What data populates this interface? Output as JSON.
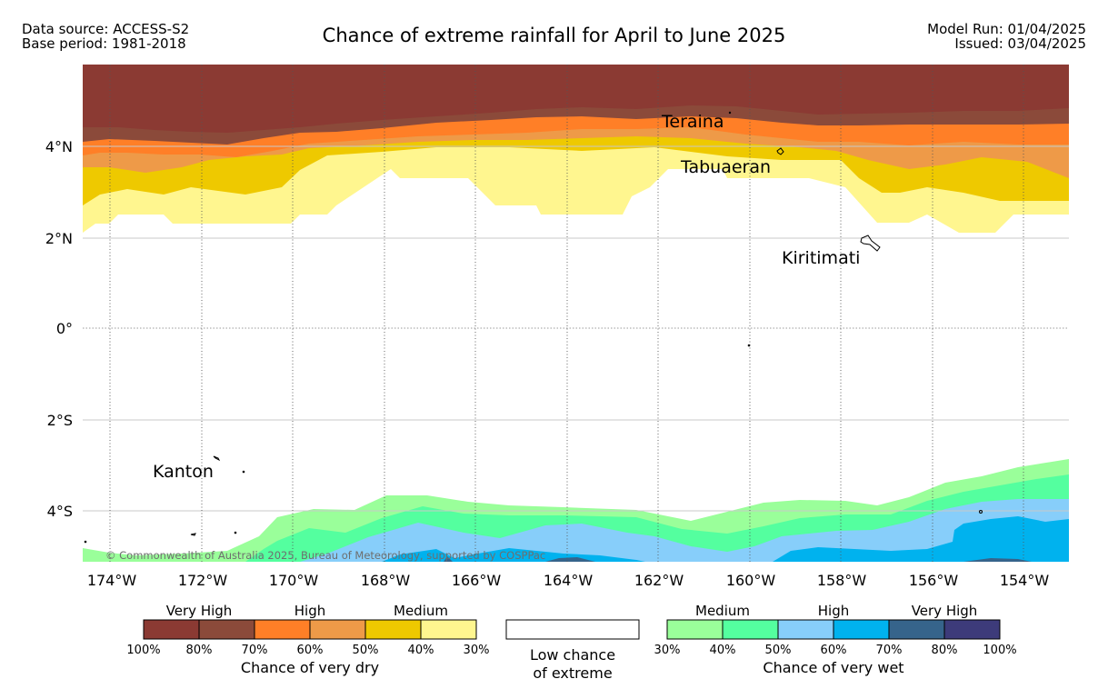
{
  "header": {
    "data_source": "Data source: ACCESS-S2",
    "base_period": "Base period: 1981-2018",
    "model_run": "Model Run: 01/04/2025",
    "issued": "Issued: 03/04/2025",
    "title": "Chance of extreme rainfall for April to June 2025"
  },
  "axes": {
    "lat_labels": [
      {
        "value": 4,
        "label": "4°N"
      },
      {
        "value": 2,
        "label": "2°N"
      },
      {
        "value": 0,
        "label": "0°"
      },
      {
        "value": -2,
        "label": "2°S"
      },
      {
        "value": -4,
        "label": "4°S"
      }
    ],
    "lon_labels": [
      {
        "value": -174,
        "label": "174°W"
      },
      {
        "value": -172,
        "label": "172°W"
      },
      {
        "value": -170,
        "label": "170°W"
      },
      {
        "value": -168,
        "label": "168°W"
      },
      {
        "value": -166,
        "label": "166°W"
      },
      {
        "value": -164,
        "label": "164°W"
      },
      {
        "value": -162,
        "label": "162°W"
      },
      {
        "value": -160,
        "label": "160°W"
      },
      {
        "value": -158,
        "label": "158°W"
      },
      {
        "value": -156,
        "label": "156°W"
      },
      {
        "value": -154,
        "label": "154°W"
      }
    ]
  },
  "places": [
    {
      "name": "Teraina"
    },
    {
      "name": "Tabuaeran"
    },
    {
      "name": "Kiritimati"
    },
    {
      "name": "Kanton"
    }
  ],
  "copyright": "© Commonwealth of Australia 2025, Bureau of Meteorology, supported by COSPPac",
  "legend": {
    "dry": {
      "groups": [
        "Very High",
        "High",
        "Medium"
      ],
      "colors": [
        "#8b3a33",
        "#8b4a3a",
        "#ff7f27",
        "#ee9a48",
        "#eec900",
        "#fff68f"
      ],
      "ticks": [
        "100%",
        "80%",
        "70%",
        "60%",
        "50%",
        "40%",
        "30%"
      ],
      "caption": "Chance of very dry"
    },
    "low": {
      "line1": "Low chance",
      "line2": "of extreme",
      "color": "#ffffff"
    },
    "wet": {
      "groups": [
        "Medium",
        "High",
        "Very High"
      ],
      "colors": [
        "#9aff9a",
        "#54ff9f",
        "#87cefa",
        "#00b2ee",
        "#36648b",
        "#3d3b7a"
      ],
      "ticks": [
        "30%",
        "40%",
        "50%",
        "60%",
        "70%",
        "80%",
        "100%"
      ],
      "caption": "Chance of very wet"
    }
  }
}
